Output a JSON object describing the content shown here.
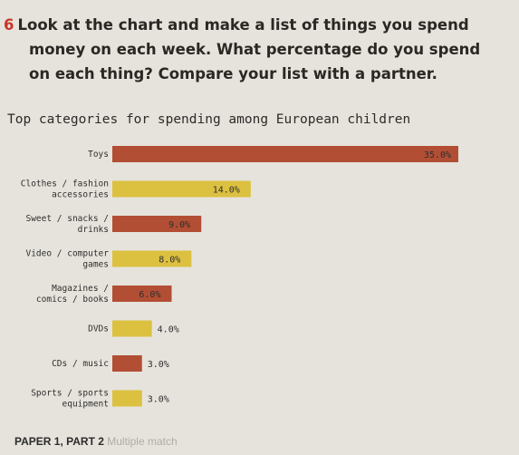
{
  "exercise": {
    "number": "6",
    "lines": [
      "Look at the chart and make a list of things you spend",
      "money on each week. What percentage do you spend",
      "on each thing? Compare your list with a partner."
    ]
  },
  "footer": {
    "text": "PAPER 1, PART 2",
    "faded": "Multiple match"
  },
  "chart_data": {
    "type": "bar",
    "orientation": "horizontal",
    "title": "Top categories for spending among European children",
    "categories": [
      [
        "Toys"
      ],
      [
        "Clothes / fashion",
        "accessories"
      ],
      [
        "Sweet / snacks /",
        "drinks"
      ],
      [
        "Video / computer",
        "games"
      ],
      [
        "Magazines /",
        "comics / books"
      ],
      [
        "DVDs"
      ],
      [
        "CDs / music"
      ],
      [
        "Sports / sports",
        "equipment"
      ]
    ],
    "values": [
      35.0,
      14.0,
      9.0,
      8.0,
      6.0,
      4.0,
      3.0,
      3.0
    ],
    "value_labels": [
      "35.0%",
      "14.0%",
      "9.0%",
      "8.0%",
      "6.0%",
      "4.0%",
      "3.0%",
      "3.0%"
    ],
    "colors": [
      "#b24e34",
      "#dcc040",
      "#b24e34",
      "#dcc040",
      "#b24e34",
      "#dcc040",
      "#b24e34",
      "#dcc040"
    ],
    "xlim": [
      0,
      35
    ],
    "grid": false,
    "legend": "none"
  }
}
